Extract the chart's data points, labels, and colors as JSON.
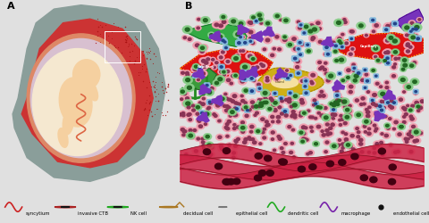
{
  "panel_A_bg": "#b8d8e8",
  "panel_B_bg": "#f5f5f5",
  "legend_bg": "#e0e0e0",
  "legend_items": [
    {
      "label": "syncytium",
      "color": "#cc2222",
      "type": "wave"
    },
    {
      "label": "invasive CTB",
      "color": "#cc3333",
      "type": "circle_dot"
    },
    {
      "label": "NK cell",
      "color": "#33aa33",
      "type": "circle_dot_green"
    },
    {
      "label": "decidual cell",
      "color": "#aa8833",
      "type": "flag_circle"
    },
    {
      "label": "epithelial cell",
      "color": "#777777",
      "type": "circle_ring"
    },
    {
      "label": "dendritic cell",
      "color": "#338833",
      "type": "wave_green"
    },
    {
      "label": "macrophage",
      "color": "#7733aa",
      "type": "wave_purple"
    },
    {
      "label": "endothelial cell",
      "color": "#111111",
      "type": "dot"
    }
  ],
  "placenta_outer_color": "#8a7070",
  "placenta_mid_color": "#cc3333",
  "placenta_amnio_color": "#dd8866",
  "placenta_inner_color": "#eec9a0",
  "fetus_skin_color": "#f5d5b0",
  "villi_color": "#cc2222",
  "capillary_red": "#dd1111",
  "capillary_border": "#ffcc00",
  "gland_color": "#ccaa00",
  "gland_border": "#997700",
  "cell_pink": "#f0a0b0",
  "cell_pink_inner": "#883355",
  "cell_green": "#88cc88",
  "cell_green_inner": "#226622",
  "cell_blue": "#88bbdd",
  "cell_blue_inner": "#224488",
  "cell_purple": "#aa77cc",
  "cell_purple_inner": "#551188",
  "vessel_red": "#cc2244",
  "vessel_dark": "#881122"
}
